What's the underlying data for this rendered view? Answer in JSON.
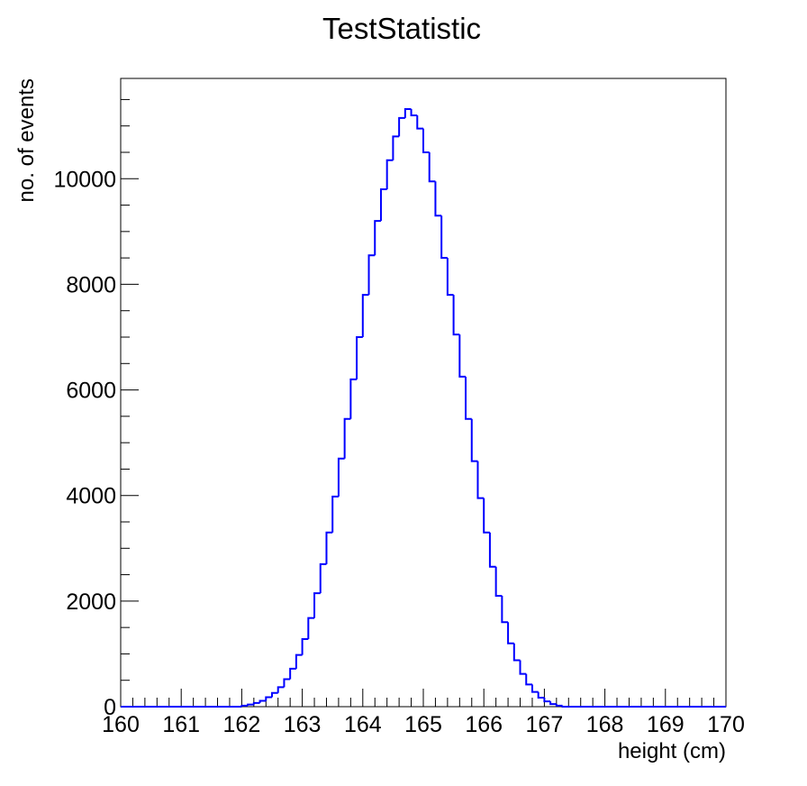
{
  "chart_data": {
    "type": "histogram",
    "title": "TestStatistic",
    "xlabel": "height (cm)",
    "ylabel": "no. of events",
    "xlim": [
      160,
      170
    ],
    "ylim": [
      0,
      11900
    ],
    "x_ticks": [
      "160",
      "161",
      "162",
      "163",
      "164",
      "165",
      "166",
      "167",
      "168",
      "169",
      "170"
    ],
    "y_ticks": [
      "0",
      "2000",
      "4000",
      "6000",
      "8000",
      "10000"
    ],
    "grid": false,
    "legend": "none",
    "line_color": "#0000ff",
    "bin_width": 0.1,
    "x": [
      162.0,
      162.1,
      162.2,
      162.3,
      162.4,
      162.5,
      162.6,
      162.7,
      162.8,
      162.9,
      163.0,
      163.1,
      163.2,
      163.3,
      163.4,
      163.5,
      163.6,
      163.7,
      163.8,
      163.9,
      164.0,
      164.1,
      164.2,
      164.3,
      164.4,
      164.5,
      164.6,
      164.7,
      164.8,
      164.9,
      165.0,
      165.1,
      165.2,
      165.3,
      165.4,
      165.5,
      165.6,
      165.7,
      165.8,
      165.9,
      166.0,
      166.1,
      166.2,
      166.3,
      166.4,
      166.5,
      166.6,
      166.7,
      166.8,
      166.9,
      167.0,
      167.1,
      167.2
    ],
    "values": [
      20,
      40,
      70,
      110,
      180,
      260,
      370,
      520,
      720,
      980,
      1280,
      1680,
      2150,
      2700,
      3300,
      3980,
      4700,
      5450,
      6200,
      7000,
      7800,
      8550,
      9200,
      9800,
      10350,
      10800,
      11150,
      11320,
      11200,
      10950,
      10500,
      9950,
      9300,
      8500,
      7800,
      7050,
      6250,
      5450,
      4650,
      3950,
      3300,
      2650,
      2100,
      1600,
      1200,
      880,
      620,
      420,
      280,
      170,
      100,
      50,
      20
    ]
  }
}
